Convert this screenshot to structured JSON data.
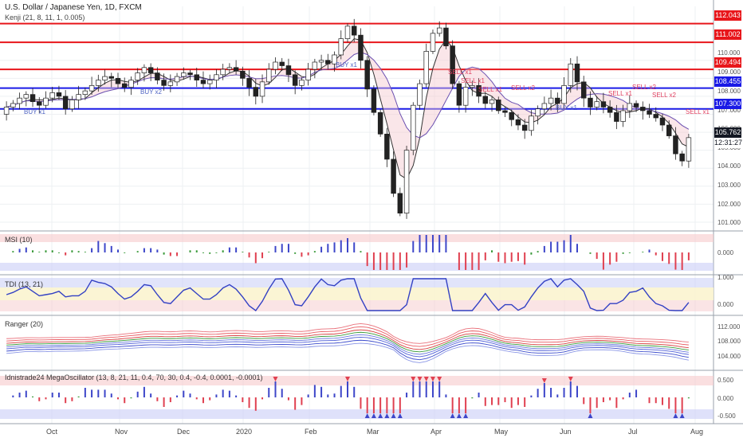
{
  "header": {
    "title": "U.S. Dollar / Japanese Yen, 1D, FXCM",
    "indicator": "Kenji (21, 8, 11, 1, 0.005)"
  },
  "panes": {
    "msi": "MSI (10)",
    "tdi": "TDI (13, 21)",
    "ranger": "Ranger (20)",
    "mega": "Idnistrade24 MegaOscillator (13, 8, 21, 11, 0.4, 70, 30, 0.4, -0.4, 0.0001, -0.0001)"
  },
  "colors": {
    "up": "#2b2b2b",
    "down": "#2b2b2b",
    "red_level": "#e8161b",
    "blue_level": "#1a1ae6",
    "sell": "#e04060",
    "buy": "#4a5fc1",
    "current": "#131722"
  },
  "chart_data": {
    "type": "candlestick",
    "title": "U.S. Dollar / Japanese Yen, 1D, FXCM",
    "x_labels": [
      "Oct",
      "Nov",
      "Dec",
      "2020",
      "Feb",
      "Mar",
      "Apr",
      "May",
      "Jun",
      "Jul",
      "Aug"
    ],
    "y_ticks": [
      "110.000",
      "109.000",
      "108.000",
      "107.000",
      "106.000",
      "105.000",
      "104.000",
      "103.000",
      "102.000",
      "101.000"
    ],
    "ylim": [
      100.6,
      113.0
    ],
    "levels": [
      {
        "value": 112.043,
        "label": "112.043",
        "color": "red"
      },
      {
        "value": 111.002,
        "label": "111.002",
        "color": "red"
      },
      {
        "value": 109.494,
        "label": "109.494",
        "color": "red"
      },
      {
        "value": 108.455,
        "label": "108.455",
        "color": "blue"
      },
      {
        "value": 107.3,
        "label": "107.300",
        "color": "blue"
      }
    ],
    "current_price": "105.762",
    "countdown": "12:31:27",
    "closes": [
      107.4,
      107.6,
      107.9,
      108.1,
      107.7,
      107.5,
      107.9,
      108.2,
      108.0,
      107.3,
      107.8,
      108.1,
      108.3,
      108.6,
      108.9,
      109.1,
      109.0,
      108.7,
      108.5,
      108.9,
      109.3,
      109.6,
      109.3,
      108.9,
      108.6,
      108.8,
      109.1,
      109.3,
      109.2,
      108.9,
      108.7,
      108.9,
      109.2,
      109.5,
      109.6,
      109.4,
      109.0,
      108.5,
      108.0,
      108.8,
      109.5,
      109.9,
      109.7,
      109.2,
      108.6,
      108.9,
      109.5,
      109.9,
      110.0,
      109.8,
      110.3,
      111.2,
      111.9,
      111.4,
      110.0,
      108.4,
      107.1,
      105.9,
      104.5,
      102.6,
      101.5,
      105.0,
      107.5,
      108.7,
      110.5,
      111.5,
      111.8,
      110.8,
      108.7,
      107.5,
      108.5,
      108.6,
      108.0,
      107.6,
      107.8,
      107.2,
      107.1,
      106.7,
      106.4,
      106.1,
      106.9,
      107.3,
      107.6,
      107.9,
      107.6,
      108.6,
      109.8,
      108.8,
      107.9,
      107.4,
      107.7,
      107.4,
      107.1,
      106.6,
      107.2,
      107.6,
      107.4,
      107.2,
      107.0,
      106.8,
      106.4,
      105.8,
      104.8,
      104.4,
      105.7
    ],
    "signals": [
      {
        "label": "BUY x1",
        "type": "buy"
      },
      {
        "label": "BUY x2",
        "type": "buy"
      },
      {
        "label": "BUY x1",
        "type": "buy"
      },
      {
        "label": "BUY x1",
        "type": "buy"
      },
      {
        "label": "SELL x1",
        "type": "sell"
      },
      {
        "label": "SELL x1",
        "type": "sell"
      },
      {
        "label": "SELL x1",
        "type": "sell"
      },
      {
        "label": "SELL x2",
        "type": "sell"
      },
      {
        "label": "SELL x1",
        "type": "sell"
      },
      {
        "label": "SELL x2",
        "type": "sell"
      },
      {
        "label": "SELL x2",
        "type": "sell"
      },
      {
        "label": "SELL x1",
        "type": "sell"
      }
    ],
    "pane_ticks": {
      "msi": [
        "0.000"
      ],
      "tdi": [
        "1.000",
        "0.000"
      ],
      "ranger": [
        "112.000",
        "108.000",
        "104.000"
      ],
      "mega": [
        "0.500",
        "0.000",
        "-0.500"
      ]
    }
  }
}
